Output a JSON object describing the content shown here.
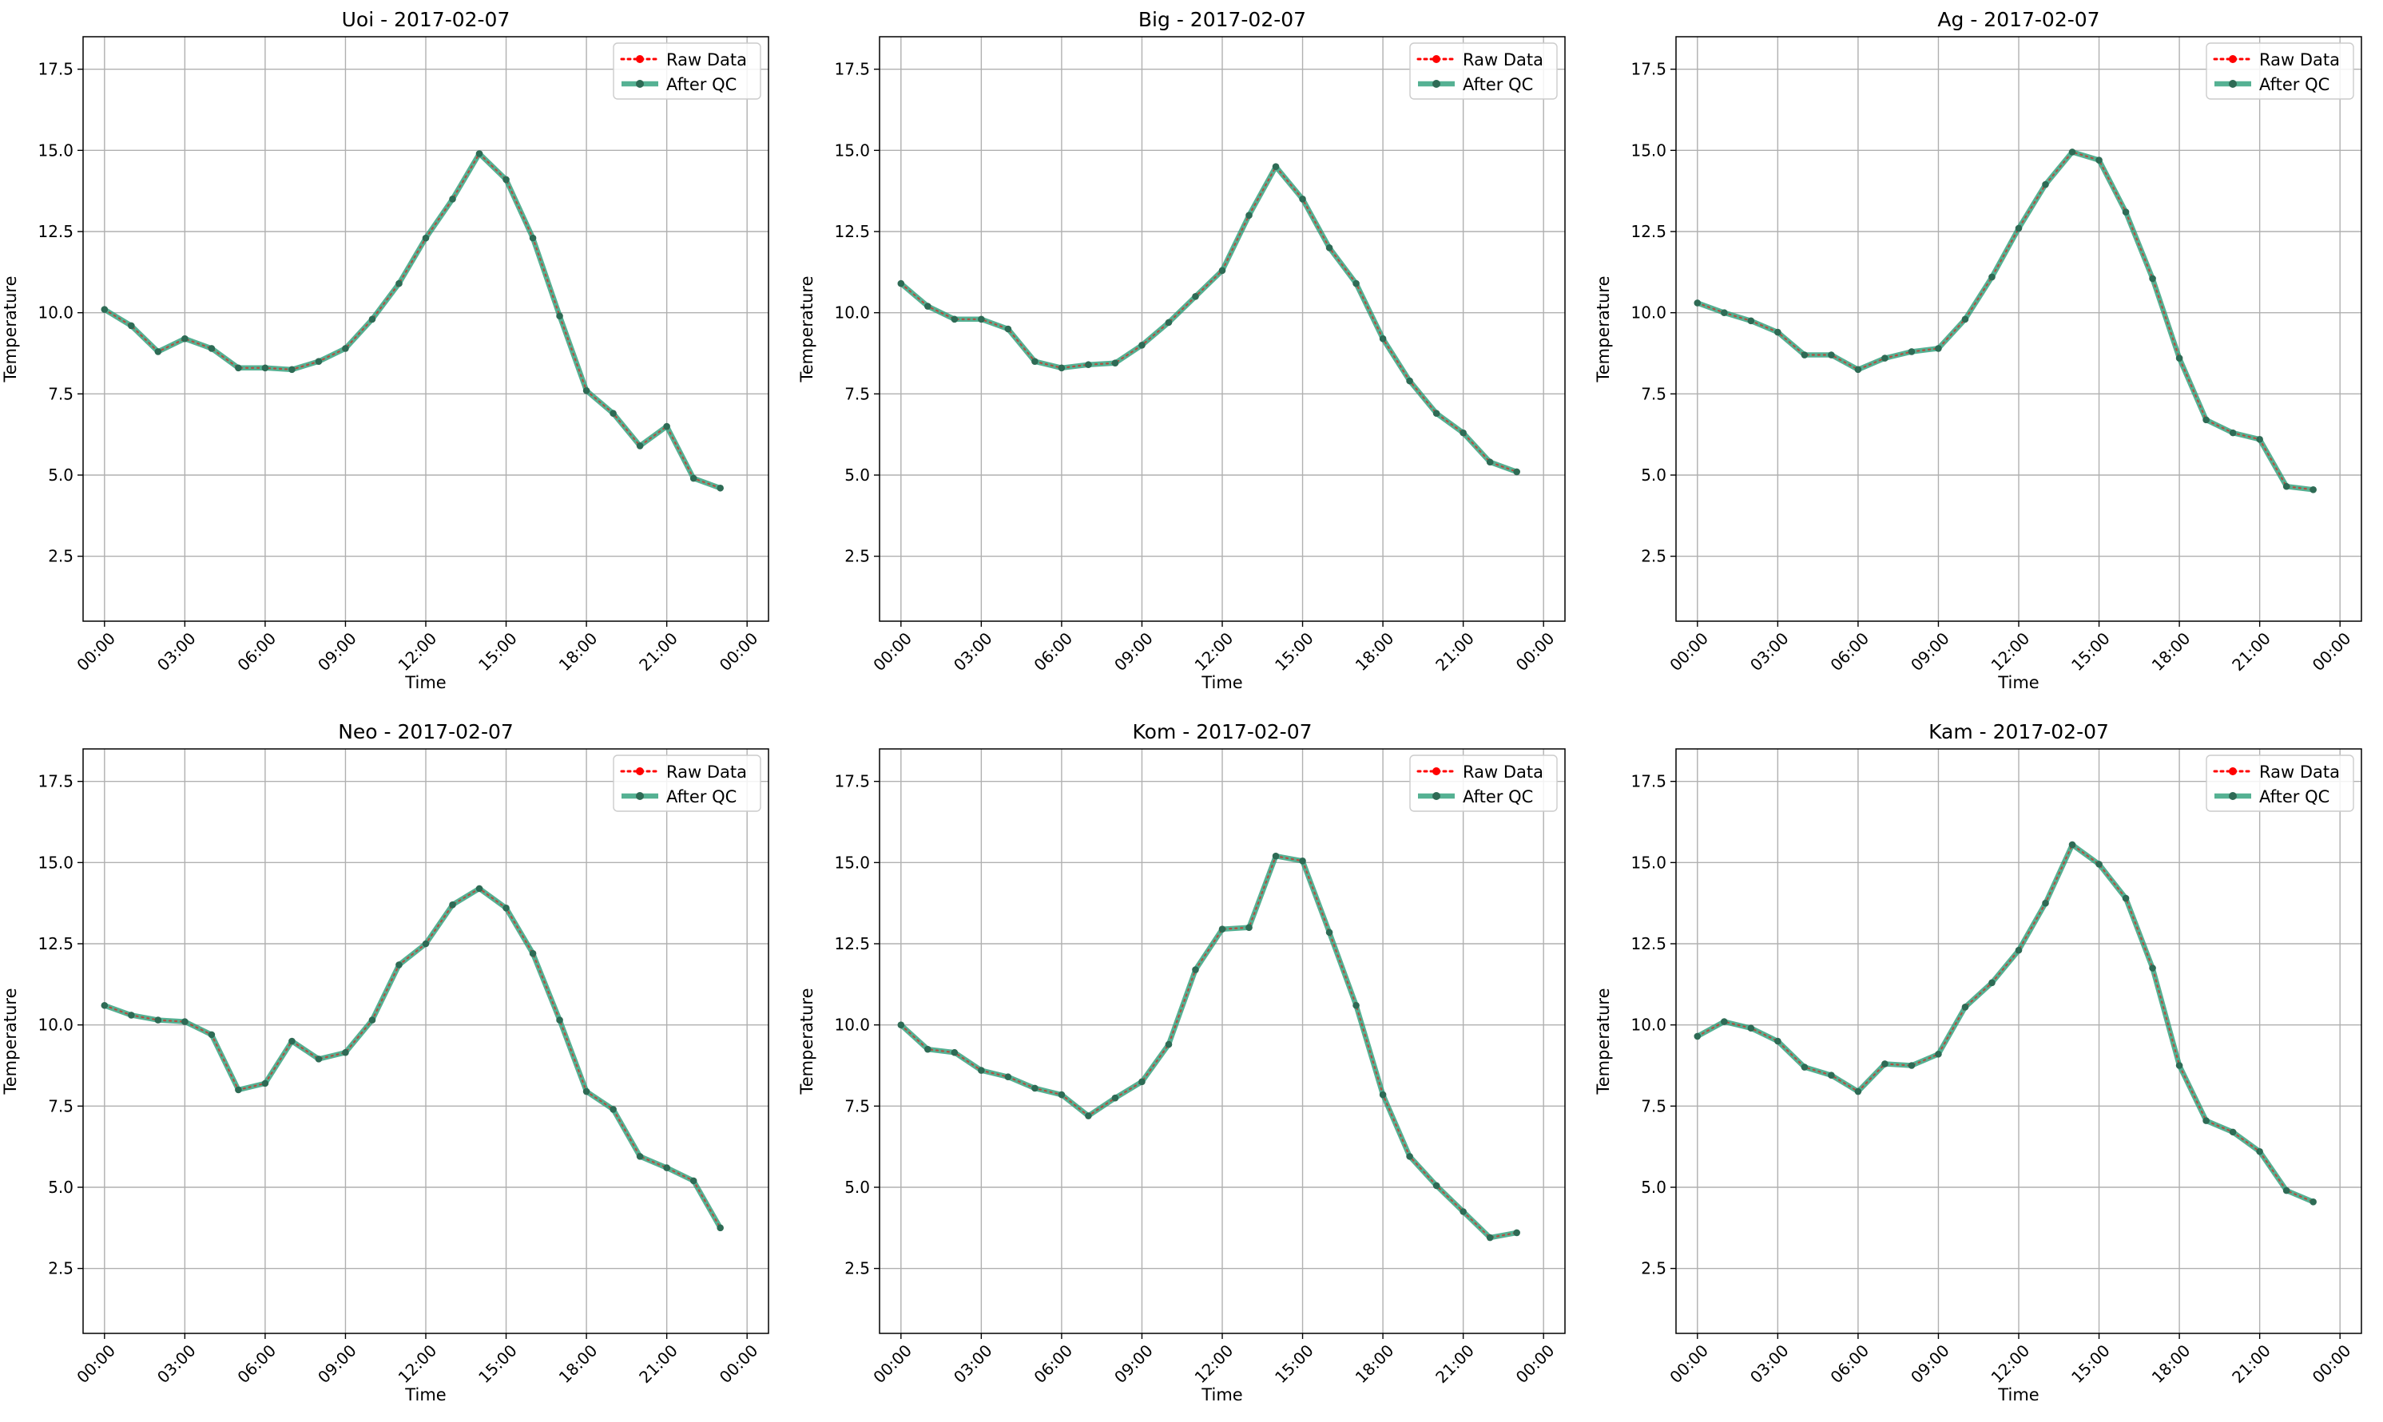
{
  "colors": {
    "raw": "#ff0000",
    "qc": "#2a9d78",
    "qc_marker": "#2e6b55",
    "grid": "#b0b0b0",
    "axis": "#000000"
  },
  "chart_data": [
    {
      "type": "line",
      "title": "Uoi - 2017-02-07",
      "xlabel": "Time",
      "ylabel": "Temperature",
      "xlim": [
        "2017-02-06 23:12",
        "2017-02-08 00:48"
      ],
      "ylim": [
        0.5,
        18.5
      ],
      "xticks": [
        "00:00",
        "03:00",
        "06:00",
        "09:00",
        "12:00",
        "15:00",
        "18:00",
        "21:00",
        "00:00"
      ],
      "yticks": [
        2.5,
        5.0,
        7.5,
        10.0,
        12.5,
        15.0,
        17.5
      ],
      "grid": true,
      "legend": "top-right",
      "x": [
        "00:00",
        "01:00",
        "02:00",
        "03:00",
        "04:00",
        "05:00",
        "06:00",
        "07:00",
        "08:00",
        "09:00",
        "10:00",
        "11:00",
        "12:00",
        "13:00",
        "14:00",
        "15:00",
        "16:00",
        "17:00",
        "18:00",
        "19:00",
        "20:00",
        "21:00",
        "22:00",
        "23:00"
      ],
      "series": [
        {
          "name": "Raw Data",
          "values": [
            10.1,
            9.6,
            8.8,
            9.2,
            8.9,
            8.3,
            8.3,
            8.25,
            8.5,
            8.9,
            9.8,
            10.9,
            12.3,
            13.5,
            14.9,
            14.1,
            12.3,
            9.9,
            7.6,
            6.9,
            5.9,
            6.5,
            4.9,
            4.6
          ]
        },
        {
          "name": "After QC",
          "values": [
            10.1,
            9.6,
            8.8,
            9.2,
            8.9,
            8.3,
            8.3,
            8.25,
            8.5,
            8.9,
            9.8,
            10.9,
            12.3,
            13.5,
            14.9,
            14.1,
            12.3,
            9.9,
            7.6,
            6.9,
            5.9,
            6.5,
            4.9,
            4.6
          ]
        }
      ]
    },
    {
      "type": "line",
      "title": "Big - 2017-02-07",
      "xlabel": "Time",
      "ylabel": "Temperature",
      "xlim": [
        "2017-02-06 23:12",
        "2017-02-08 00:48"
      ],
      "ylim": [
        0.5,
        18.5
      ],
      "xticks": [
        "00:00",
        "03:00",
        "06:00",
        "09:00",
        "12:00",
        "15:00",
        "18:00",
        "21:00",
        "00:00"
      ],
      "yticks": [
        2.5,
        5.0,
        7.5,
        10.0,
        12.5,
        15.0,
        17.5
      ],
      "grid": true,
      "legend": "top-right",
      "x": [
        "00:00",
        "01:00",
        "02:00",
        "03:00",
        "04:00",
        "05:00",
        "06:00",
        "07:00",
        "08:00",
        "09:00",
        "10:00",
        "11:00",
        "12:00",
        "13:00",
        "14:00",
        "15:00",
        "16:00",
        "17:00",
        "18:00",
        "19:00",
        "20:00",
        "21:00",
        "22:00",
        "23:00"
      ],
      "series": [
        {
          "name": "Raw Data",
          "values": [
            10.9,
            10.2,
            9.8,
            9.8,
            9.5,
            8.5,
            8.3,
            8.4,
            8.45,
            9.0,
            9.7,
            10.5,
            11.3,
            13.0,
            14.5,
            13.5,
            12.0,
            10.9,
            9.2,
            7.9,
            6.9,
            6.3,
            5.4,
            5.1
          ]
        },
        {
          "name": "After QC",
          "values": [
            10.9,
            10.2,
            9.8,
            9.8,
            9.5,
            8.5,
            8.3,
            8.4,
            8.45,
            9.0,
            9.7,
            10.5,
            11.3,
            13.0,
            14.5,
            13.5,
            12.0,
            10.9,
            9.2,
            7.9,
            6.9,
            6.3,
            5.4,
            5.1
          ]
        }
      ]
    },
    {
      "type": "line",
      "title": "Ag - 2017-02-07",
      "xlabel": "Time",
      "ylabel": "Temperature",
      "xlim": [
        "2017-02-06 23:12",
        "2017-02-08 00:48"
      ],
      "ylim": [
        0.5,
        18.5
      ],
      "xticks": [
        "00:00",
        "03:00",
        "06:00",
        "09:00",
        "12:00",
        "15:00",
        "18:00",
        "21:00",
        "00:00"
      ],
      "yticks": [
        2.5,
        5.0,
        7.5,
        10.0,
        12.5,
        15.0,
        17.5
      ],
      "grid": true,
      "legend": "top-right",
      "x": [
        "00:00",
        "01:00",
        "02:00",
        "03:00",
        "04:00",
        "05:00",
        "06:00",
        "07:00",
        "08:00",
        "09:00",
        "10:00",
        "11:00",
        "12:00",
        "13:00",
        "14:00",
        "15:00",
        "16:00",
        "17:00",
        "18:00",
        "19:00",
        "20:00",
        "21:00",
        "22:00",
        "23:00"
      ],
      "series": [
        {
          "name": "Raw Data",
          "values": [
            10.3,
            10.0,
            9.75,
            9.4,
            8.7,
            8.7,
            8.25,
            8.6,
            8.8,
            8.9,
            9.8,
            11.1,
            12.6,
            13.95,
            14.95,
            14.7,
            13.1,
            11.05,
            8.6,
            6.7,
            6.3,
            6.1,
            4.65,
            4.55
          ]
        },
        {
          "name": "After QC",
          "values": [
            10.3,
            10.0,
            9.75,
            9.4,
            8.7,
            8.7,
            8.25,
            8.6,
            8.8,
            8.9,
            9.8,
            11.1,
            12.6,
            13.95,
            14.95,
            14.7,
            13.1,
            11.05,
            8.6,
            6.7,
            6.3,
            6.1,
            4.65,
            4.55
          ]
        }
      ]
    },
    {
      "type": "line",
      "title": "Neo - 2017-02-07",
      "xlabel": "Time",
      "ylabel": "Temperature",
      "xlim": [
        "2017-02-06 23:12",
        "2017-02-08 00:48"
      ],
      "ylim": [
        0.5,
        18.5
      ],
      "xticks": [
        "00:00",
        "03:00",
        "06:00",
        "09:00",
        "12:00",
        "15:00",
        "18:00",
        "21:00",
        "00:00"
      ],
      "yticks": [
        2.5,
        5.0,
        7.5,
        10.0,
        12.5,
        15.0,
        17.5
      ],
      "grid": true,
      "legend": "top-right",
      "x": [
        "00:00",
        "01:00",
        "02:00",
        "03:00",
        "04:00",
        "05:00",
        "06:00",
        "07:00",
        "08:00",
        "09:00",
        "10:00",
        "11:00",
        "12:00",
        "13:00",
        "14:00",
        "15:00",
        "16:00",
        "17:00",
        "18:00",
        "19:00",
        "20:00",
        "21:00",
        "22:00",
        "23:00"
      ],
      "series": [
        {
          "name": "Raw Data",
          "values": [
            10.6,
            10.3,
            10.15,
            10.1,
            9.7,
            8.0,
            8.2,
            9.5,
            8.95,
            9.15,
            10.15,
            11.85,
            12.5,
            13.7,
            14.2,
            13.6,
            12.2,
            10.15,
            7.95,
            7.4,
            5.95,
            5.6,
            5.2,
            3.75
          ]
        },
        {
          "name": "After QC",
          "values": [
            10.6,
            10.3,
            10.15,
            10.1,
            9.7,
            8.0,
            8.2,
            9.5,
            8.95,
            9.15,
            10.15,
            11.85,
            12.5,
            13.7,
            14.2,
            13.6,
            12.2,
            10.15,
            7.95,
            7.4,
            5.95,
            5.6,
            5.2,
            3.75
          ]
        }
      ]
    },
    {
      "type": "line",
      "title": "Kom - 2017-02-07",
      "xlabel": "Time",
      "ylabel": "Temperature",
      "xlim": [
        "2017-02-06 23:12",
        "2017-02-08 00:48"
      ],
      "ylim": [
        0.5,
        18.5
      ],
      "xticks": [
        "00:00",
        "03:00",
        "06:00",
        "09:00",
        "12:00",
        "15:00",
        "18:00",
        "21:00",
        "00:00"
      ],
      "yticks": [
        2.5,
        5.0,
        7.5,
        10.0,
        12.5,
        15.0,
        17.5
      ],
      "grid": true,
      "legend": "top-right",
      "x": [
        "00:00",
        "01:00",
        "02:00",
        "03:00",
        "04:00",
        "05:00",
        "06:00",
        "07:00",
        "08:00",
        "09:00",
        "10:00",
        "11:00",
        "12:00",
        "13:00",
        "14:00",
        "15:00",
        "16:00",
        "17:00",
        "18:00",
        "19:00",
        "20:00",
        "21:00",
        "22:00",
        "23:00"
      ],
      "series": [
        {
          "name": "Raw Data",
          "values": [
            10.0,
            9.25,
            9.15,
            8.6,
            8.4,
            8.05,
            7.85,
            7.2,
            7.75,
            8.25,
            9.4,
            11.7,
            12.95,
            13.0,
            15.2,
            15.05,
            12.85,
            10.6,
            7.85,
            5.95,
            5.05,
            4.25,
            3.45,
            3.6
          ]
        },
        {
          "name": "After QC",
          "values": [
            10.0,
            9.25,
            9.15,
            8.6,
            8.4,
            8.05,
            7.85,
            7.2,
            7.75,
            8.25,
            9.4,
            11.7,
            12.95,
            13.0,
            15.2,
            15.05,
            12.85,
            10.6,
            7.85,
            5.95,
            5.05,
            4.25,
            3.45,
            3.6
          ]
        }
      ]
    },
    {
      "type": "line",
      "title": "Kam - 2017-02-07",
      "xlabel": "Time",
      "ylabel": "Temperature",
      "xlim": [
        "2017-02-06 23:12",
        "2017-02-08 00:48"
      ],
      "ylim": [
        0.5,
        18.5
      ],
      "xticks": [
        "00:00",
        "03:00",
        "06:00",
        "09:00",
        "12:00",
        "15:00",
        "18:00",
        "21:00",
        "00:00"
      ],
      "yticks": [
        2.5,
        5.0,
        7.5,
        10.0,
        12.5,
        15.0,
        17.5
      ],
      "grid": true,
      "legend": "top-right",
      "x": [
        "00:00",
        "01:00",
        "02:00",
        "03:00",
        "04:00",
        "05:00",
        "06:00",
        "07:00",
        "08:00",
        "09:00",
        "10:00",
        "11:00",
        "12:00",
        "13:00",
        "14:00",
        "15:00",
        "16:00",
        "17:00",
        "18:00",
        "19:00",
        "20:00",
        "21:00",
        "22:00",
        "23:00"
      ],
      "series": [
        {
          "name": "Raw Data",
          "values": [
            9.65,
            10.1,
            9.9,
            9.5,
            8.7,
            8.45,
            7.95,
            8.8,
            8.75,
            9.1,
            10.55,
            11.3,
            12.3,
            13.75,
            15.55,
            14.95,
            13.9,
            11.75,
            8.75,
            7.05,
            6.7,
            6.1,
            4.9,
            4.55
          ]
        },
        {
          "name": "After QC",
          "values": [
            9.65,
            10.1,
            9.9,
            9.5,
            8.7,
            8.45,
            7.95,
            8.8,
            8.75,
            9.1,
            10.55,
            11.3,
            12.3,
            13.75,
            15.55,
            14.95,
            13.9,
            11.75,
            8.75,
            7.05,
            6.7,
            6.1,
            4.9,
            4.55
          ]
        }
      ]
    }
  ]
}
